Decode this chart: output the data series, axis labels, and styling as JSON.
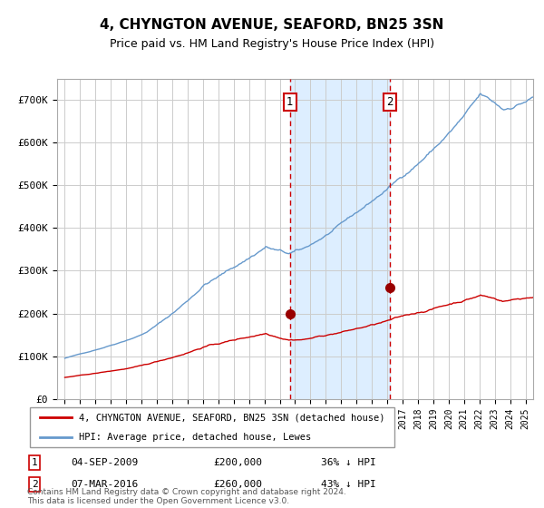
{
  "title": "4, CHYNGTON AVENUE, SEAFORD, BN25 3SN",
  "subtitle": "Price paid vs. HM Land Registry's House Price Index (HPI)",
  "hpi_label": "HPI: Average price, detached house, Lewes",
  "price_label": "4, CHYNGTON AVENUE, SEAFORD, BN25 3SN (detached house)",
  "hpi_color": "#6699cc",
  "price_color": "#cc0000",
  "point_color": "#990000",
  "background_color": "#ffffff",
  "grid_color": "#cccccc",
  "shade_color": "#ddeeff",
  "dashed_line_color": "#cc0000",
  "transaction1_date_num": 2009.67,
  "transaction1_price": 200000,
  "transaction2_date_num": 2016.17,
  "transaction2_price": 260000,
  "footer": "Contains HM Land Registry data © Crown copyright and database right 2024.\nThis data is licensed under the Open Government Licence v3.0.",
  "ylim": [
    0,
    750000
  ],
  "yticks": [
    0,
    100000,
    200000,
    300000,
    400000,
    500000,
    600000,
    700000
  ],
  "ytick_labels": [
    "£0",
    "£100K",
    "£200K",
    "£300K",
    "£400K",
    "£500K",
    "£600K",
    "£700K"
  ],
  "xlim_start": 1994.5,
  "xlim_end": 2025.5
}
